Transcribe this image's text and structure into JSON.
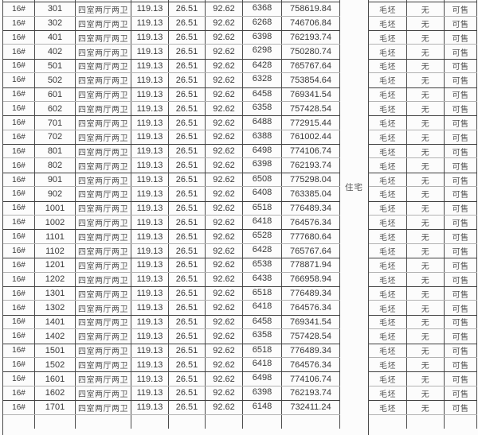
{
  "table": {
    "common": {
      "building": "16#",
      "unit_type": "四室两厅两卫",
      "area_total": "119.13",
      "area_shared": "26.51",
      "area_inner": "92.62",
      "finish": "毛坯",
      "mortgage": "无",
      "status": "可售"
    },
    "category_label": "住宅",
    "rows": [
      {
        "room": "301",
        "price": "6368",
        "total": "758619.84"
      },
      {
        "room": "302",
        "price": "6268",
        "total": "746706.84"
      },
      {
        "room": "401",
        "price": "6398",
        "total": "762193.74"
      },
      {
        "room": "402",
        "price": "6298",
        "total": "750280.74"
      },
      {
        "room": "501",
        "price": "6428",
        "total": "765767.64"
      },
      {
        "room": "502",
        "price": "6328",
        "total": "753854.64"
      },
      {
        "room": "601",
        "price": "6458",
        "total": "769341.54"
      },
      {
        "room": "602",
        "price": "6358",
        "total": "757428.54"
      },
      {
        "room": "701",
        "price": "6488",
        "total": "772915.44"
      },
      {
        "room": "702",
        "price": "6388",
        "total": "761002.44"
      },
      {
        "room": "801",
        "price": "6498",
        "total": "774106.74"
      },
      {
        "room": "802",
        "price": "6398",
        "total": "762193.74"
      },
      {
        "room": "901",
        "price": "6508",
        "total": "775298.04"
      },
      {
        "room": "902",
        "price": "6408",
        "total": "763385.04"
      },
      {
        "room": "1001",
        "price": "6518",
        "total": "776489.34"
      },
      {
        "room": "1002",
        "price": "6418",
        "total": "764576.34"
      },
      {
        "room": "1101",
        "price": "6528",
        "total": "777680.64"
      },
      {
        "room": "1102",
        "price": "6428",
        "total": "765767.64"
      },
      {
        "room": "1201",
        "price": "6538",
        "total": "778871.94"
      },
      {
        "room": "1202",
        "price": "6438",
        "total": "766958.94"
      },
      {
        "room": "1301",
        "price": "6518",
        "total": "776489.34"
      },
      {
        "room": "1302",
        "price": "6418",
        "total": "764576.34"
      },
      {
        "room": "1401",
        "price": "6458",
        "total": "769341.54"
      },
      {
        "room": "1402",
        "price": "6358",
        "total": "757428.54"
      },
      {
        "room": "1501",
        "price": "6518",
        "total": "776489.34"
      },
      {
        "room": "1502",
        "price": "6418",
        "total": "764576.34"
      },
      {
        "room": "1601",
        "price": "6498",
        "total": "774106.74"
      },
      {
        "room": "1602",
        "price": "6398",
        "total": "762193.74"
      },
      {
        "room": "1701",
        "price": "6148",
        "total": "732411.24"
      }
    ]
  }
}
